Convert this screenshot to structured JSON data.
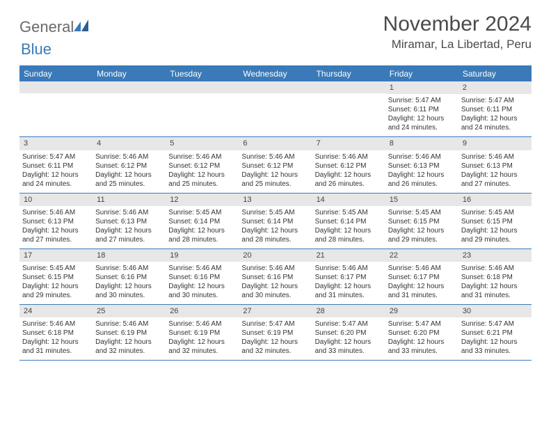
{
  "logo": {
    "text1": "General",
    "text2": "Blue"
  },
  "title": "November 2024",
  "location": "Miramar, La Libertad, Peru",
  "colors": {
    "brand": "#3a7ab8",
    "gray_text": "#6a6a6a",
    "strip": "#e7e7e7"
  },
  "day_headers": [
    "Sunday",
    "Monday",
    "Tuesday",
    "Wednesday",
    "Thursday",
    "Friday",
    "Saturday"
  ],
  "labels": {
    "sunrise": "Sunrise:",
    "sunset": "Sunset:",
    "daylight": "Daylight:",
    "hours": "hours",
    "and": "and",
    "minutes": "minutes."
  },
  "weeks": [
    [
      {
        "empty": true
      },
      {
        "empty": true
      },
      {
        "empty": true
      },
      {
        "empty": true
      },
      {
        "empty": true
      },
      {
        "n": "1",
        "sr": "5:47 AM",
        "ss": "6:11 PM",
        "dh": "12",
        "dm": "24"
      },
      {
        "n": "2",
        "sr": "5:47 AM",
        "ss": "6:11 PM",
        "dh": "12",
        "dm": "24"
      }
    ],
    [
      {
        "n": "3",
        "sr": "5:47 AM",
        "ss": "6:11 PM",
        "dh": "12",
        "dm": "24"
      },
      {
        "n": "4",
        "sr": "5:46 AM",
        "ss": "6:12 PM",
        "dh": "12",
        "dm": "25"
      },
      {
        "n": "5",
        "sr": "5:46 AM",
        "ss": "6:12 PM",
        "dh": "12",
        "dm": "25"
      },
      {
        "n": "6",
        "sr": "5:46 AM",
        "ss": "6:12 PM",
        "dh": "12",
        "dm": "25"
      },
      {
        "n": "7",
        "sr": "5:46 AM",
        "ss": "6:12 PM",
        "dh": "12",
        "dm": "26"
      },
      {
        "n": "8",
        "sr": "5:46 AM",
        "ss": "6:13 PM",
        "dh": "12",
        "dm": "26"
      },
      {
        "n": "9",
        "sr": "5:46 AM",
        "ss": "6:13 PM",
        "dh": "12",
        "dm": "27"
      }
    ],
    [
      {
        "n": "10",
        "sr": "5:46 AM",
        "ss": "6:13 PM",
        "dh": "12",
        "dm": "27"
      },
      {
        "n": "11",
        "sr": "5:46 AM",
        "ss": "6:13 PM",
        "dh": "12",
        "dm": "27"
      },
      {
        "n": "12",
        "sr": "5:45 AM",
        "ss": "6:14 PM",
        "dh": "12",
        "dm": "28"
      },
      {
        "n": "13",
        "sr": "5:45 AM",
        "ss": "6:14 PM",
        "dh": "12",
        "dm": "28"
      },
      {
        "n": "14",
        "sr": "5:45 AM",
        "ss": "6:14 PM",
        "dh": "12",
        "dm": "28"
      },
      {
        "n": "15",
        "sr": "5:45 AM",
        "ss": "6:15 PM",
        "dh": "12",
        "dm": "29"
      },
      {
        "n": "16",
        "sr": "5:45 AM",
        "ss": "6:15 PM",
        "dh": "12",
        "dm": "29"
      }
    ],
    [
      {
        "n": "17",
        "sr": "5:45 AM",
        "ss": "6:15 PM",
        "dh": "12",
        "dm": "29"
      },
      {
        "n": "18",
        "sr": "5:46 AM",
        "ss": "6:16 PM",
        "dh": "12",
        "dm": "30"
      },
      {
        "n": "19",
        "sr": "5:46 AM",
        "ss": "6:16 PM",
        "dh": "12",
        "dm": "30"
      },
      {
        "n": "20",
        "sr": "5:46 AM",
        "ss": "6:16 PM",
        "dh": "12",
        "dm": "30"
      },
      {
        "n": "21",
        "sr": "5:46 AM",
        "ss": "6:17 PM",
        "dh": "12",
        "dm": "31"
      },
      {
        "n": "22",
        "sr": "5:46 AM",
        "ss": "6:17 PM",
        "dh": "12",
        "dm": "31"
      },
      {
        "n": "23",
        "sr": "5:46 AM",
        "ss": "6:18 PM",
        "dh": "12",
        "dm": "31"
      }
    ],
    [
      {
        "n": "24",
        "sr": "5:46 AM",
        "ss": "6:18 PM",
        "dh": "12",
        "dm": "31"
      },
      {
        "n": "25",
        "sr": "5:46 AM",
        "ss": "6:19 PM",
        "dh": "12",
        "dm": "32"
      },
      {
        "n": "26",
        "sr": "5:46 AM",
        "ss": "6:19 PM",
        "dh": "12",
        "dm": "32"
      },
      {
        "n": "27",
        "sr": "5:47 AM",
        "ss": "6:19 PM",
        "dh": "12",
        "dm": "32"
      },
      {
        "n": "28",
        "sr": "5:47 AM",
        "ss": "6:20 PM",
        "dh": "12",
        "dm": "33"
      },
      {
        "n": "29",
        "sr": "5:47 AM",
        "ss": "6:20 PM",
        "dh": "12",
        "dm": "33"
      },
      {
        "n": "30",
        "sr": "5:47 AM",
        "ss": "6:21 PM",
        "dh": "12",
        "dm": "33"
      }
    ]
  ]
}
